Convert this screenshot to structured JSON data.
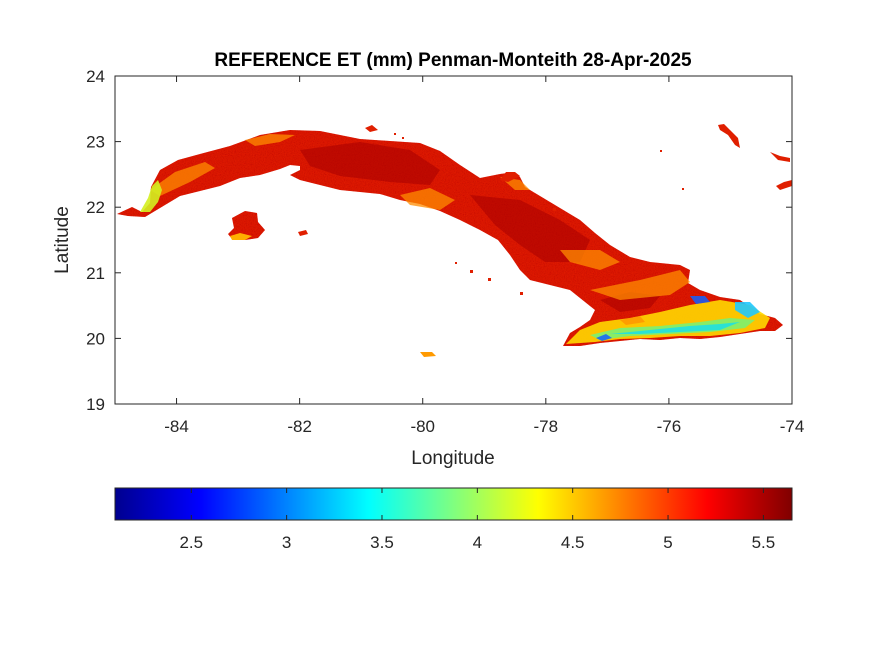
{
  "title": "REFERENCE ET (mm) Penman-Monteith 28-Apr-2025",
  "map": {
    "xlabel": "Longitude",
    "ylabel": "Latitude",
    "xlim": [
      -85,
      -74
    ],
    "ylim": [
      19,
      24
    ],
    "xticks": [
      -84,
      -82,
      -80,
      -78,
      -76,
      -74
    ],
    "yticks": [
      19,
      20,
      21,
      22,
      23,
      24
    ],
    "region": "Cuba",
    "variable": "Reference evapotranspiration",
    "colormap": "jet"
  },
  "colorbar": {
    "range": [
      2.1,
      5.65
    ],
    "ticks": [
      2.5,
      3,
      3.5,
      4,
      4.5,
      5,
      5.5
    ],
    "orientation": "horizontal",
    "position": "below map"
  },
  "colors": {
    "dominant": "#e31a00",
    "dark_red": "#b40000",
    "orange": "#ff7a00",
    "yellow": "#ffe600",
    "cyan": "#20e0e0",
    "blue": "#1060ff",
    "axis": "#262626",
    "background": "#ffffff"
  }
}
